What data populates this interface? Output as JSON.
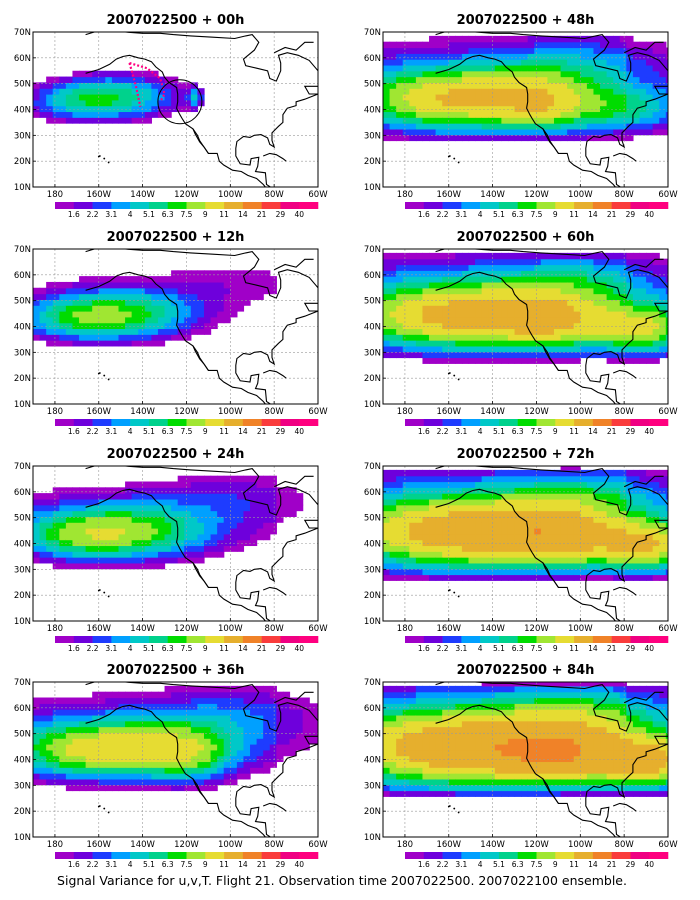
{
  "caption": "Signal Variance for u,v,T. Flight 21. Observation time 2007022500. 2007022100 ensemble.",
  "panels": [
    {
      "title": "2007022500 + 00h",
      "spread": 0,
      "flight_track": true
    },
    {
      "title": "2007022500 + 48h",
      "spread": 4,
      "flight_track": false
    },
    {
      "title": "2007022500 + 12h",
      "spread": 1,
      "flight_track": false
    },
    {
      "title": "2007022500 + 60h",
      "spread": 5,
      "flight_track": false
    },
    {
      "title": "2007022500 + 24h",
      "spread": 2,
      "flight_track": false
    },
    {
      "title": "2007022500 + 72h",
      "spread": 6,
      "flight_track": false
    },
    {
      "title": "2007022500 + 36h",
      "spread": 3,
      "flight_track": false
    },
    {
      "title": "2007022500 + 84h",
      "spread": 7,
      "flight_track": false
    }
  ],
  "axes": {
    "lon_ticks": [
      "180",
      "160W",
      "140W",
      "120W",
      "100W",
      "80W",
      "60W"
    ],
    "lat_ticks": [
      "70N",
      "60N",
      "50N",
      "40N",
      "30N",
      "20N",
      "10N"
    ],
    "lon_range": [
      -190,
      -60
    ],
    "lat_range": [
      10,
      70
    ]
  },
  "colorbar": {
    "labels": [
      "1.6",
      "2.2",
      "3.1",
      "4",
      "5.1",
      "6.3",
      "7.5",
      "9",
      "11",
      "14",
      "21",
      "29",
      "40"
    ],
    "colors": [
      "#a000c8",
      "#6e00dc",
      "#1e3cff",
      "#00a0ff",
      "#00c8c8",
      "#00d28c",
      "#00dc00",
      "#a0e632",
      "#e6dc32",
      "#e6af2d",
      "#f08228",
      "#fa3c3c",
      "#f00082",
      "#ff007f"
    ]
  },
  "colors": {
    "coast": "#000000",
    "grid": "#9a9a9a",
    "flight_track": "#ff0080",
    "circle": "#000000"
  }
}
